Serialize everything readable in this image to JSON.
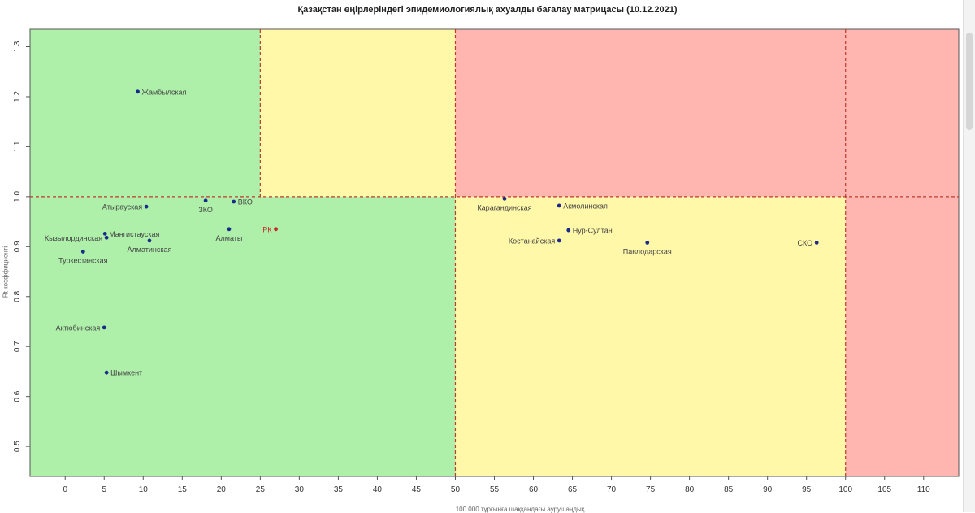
{
  "chart_data": {
    "type": "scatter",
    "title": "Қазақстан өңірлеріндегі эпидемиологиялық ахуалды бағалау матрицасы  (10.12.2021)",
    "xlabel": "100 000 тұрғынға шаққандағы аурушаңдық",
    "ylabel": "Rt коэффициенті",
    "xlim": [
      -4.5,
      114.5
    ],
    "ylim": [
      0.44,
      1.335
    ],
    "xticks": [
      "0",
      "5",
      "10",
      "15",
      "20",
      "25",
      "30",
      "35",
      "40",
      "45",
      "50",
      "55",
      "60",
      "65",
      "70",
      "75",
      "80",
      "85",
      "90",
      "95",
      "100",
      "105",
      "110"
    ],
    "yticks": [
      "0.5",
      "0.6",
      "0.7",
      "0.8",
      "0.9",
      "1.0",
      "1.1",
      "1.2",
      "1.3"
    ],
    "zones": [
      {
        "x": [
          -4.5,
          25
        ],
        "y": [
          1.0,
          1.335
        ],
        "color": "#aef0aa"
      },
      {
        "x": [
          25,
          50
        ],
        "y": [
          1.0,
          1.335
        ],
        "color": "#fff8a8"
      },
      {
        "x": [
          50,
          114.5
        ],
        "y": [
          1.0,
          1.335
        ],
        "color": "#ffb6b0"
      },
      {
        "x": [
          -4.5,
          50
        ],
        "y": [
          0.44,
          1.0
        ],
        "color": "#aef0aa"
      },
      {
        "x": [
          50,
          100
        ],
        "y": [
          0.44,
          1.0
        ],
        "color": "#fff8a8"
      },
      {
        "x": [
          100,
          114.5
        ],
        "y": [
          0.44,
          1.0
        ],
        "color": "#ffb6b0"
      }
    ],
    "reference_lines": {
      "x": [
        25,
        50,
        100
      ],
      "y": [
        1.0
      ]
    },
    "points": [
      {
        "label": "Жамбылская",
        "x": 9.3,
        "y": 1.21,
        "anchor": "right",
        "color": "#1a2a8c"
      },
      {
        "label": "Атырауская",
        "x": 10.4,
        "y": 0.98,
        "anchor": "left",
        "color": "#1a2a8c"
      },
      {
        "label": "ЗКО",
        "x": 18.0,
        "y": 0.992,
        "anchor": "below",
        "color": "#1a2a8c"
      },
      {
        "label": "ВКО",
        "x": 21.6,
        "y": 0.99,
        "anchor": "right",
        "color": "#1a2a8c"
      },
      {
        "label": "Алматы",
        "x": 21.0,
        "y": 0.935,
        "anchor": "below",
        "color": "#1a2a8c"
      },
      {
        "label": "РК",
        "x": 27.0,
        "y": 0.935,
        "anchor": "left",
        "color": "#c62828"
      },
      {
        "label": "Мангистауская",
        "x": 5.1,
        "y": 0.926,
        "anchor": "right",
        "color": "#1a2a8c"
      },
      {
        "label": "Кызылординская",
        "x": 5.3,
        "y": 0.918,
        "anchor": "left",
        "color": "#1a2a8c"
      },
      {
        "label": "Алматинская",
        "x": 10.8,
        "y": 0.912,
        "anchor": "below",
        "color": "#1a2a8c"
      },
      {
        "label": "Туркестанская",
        "x": 2.3,
        "y": 0.89,
        "anchor": "below",
        "color": "#1a2a8c"
      },
      {
        "label": "Актюбинская",
        "x": 5.0,
        "y": 0.738,
        "anchor": "left",
        "color": "#1a2a8c"
      },
      {
        "label": "Шымкент",
        "x": 5.3,
        "y": 0.648,
        "anchor": "right",
        "color": "#1a2a8c"
      },
      {
        "label": "Карагандинская",
        "x": 56.3,
        "y": 0.996,
        "anchor": "below",
        "color": "#1a2a8c"
      },
      {
        "label": "Акмолинская",
        "x": 63.3,
        "y": 0.982,
        "anchor": "right",
        "color": "#1a2a8c"
      },
      {
        "label": "Нур-Султан",
        "x": 64.5,
        "y": 0.933,
        "anchor": "right",
        "color": "#1a2a8c"
      },
      {
        "label": "Костанайская",
        "x": 63.3,
        "y": 0.912,
        "anchor": "left",
        "color": "#1a2a8c"
      },
      {
        "label": "Павлодарская",
        "x": 74.6,
        "y": 0.908,
        "anchor": "below",
        "color": "#1a2a8c"
      },
      {
        "label": "СКО",
        "x": 96.3,
        "y": 0.908,
        "anchor": "left",
        "color": "#1a2a8c"
      }
    ]
  }
}
